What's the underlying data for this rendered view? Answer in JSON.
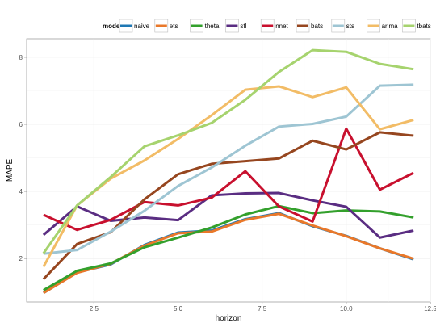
{
  "chart_data": {
    "type": "line",
    "xlabel": "horizon",
    "ylabel": "MAPE",
    "legend_title": "model",
    "legend_position": "top",
    "grid": true,
    "xlim": [
      0.5,
      12.5
    ],
    "ylim": [
      0.7,
      8.55
    ],
    "x_ticks": [
      2.5,
      5.0,
      7.5,
      10.0,
      12.5
    ],
    "x_tick_labels": [
      "2.5",
      "5.0",
      "7.5",
      "10.0",
      "12.5"
    ],
    "y_ticks": [
      2,
      4,
      6,
      8
    ],
    "y_tick_labels": [
      "2",
      "4",
      "6",
      "8"
    ],
    "x": [
      1,
      2,
      3,
      4,
      5,
      6,
      7,
      8,
      9,
      10,
      11,
      12
    ],
    "series": [
      {
        "name": "naive",
        "color": "#1f78b4",
        "values": [
          0.97,
          1.58,
          1.82,
          2.4,
          2.77,
          2.83,
          3.17,
          3.35,
          2.96,
          2.67,
          2.3,
          1.97
        ]
      },
      {
        "name": "ets",
        "color": "#e9782a",
        "values": [
          0.97,
          1.57,
          1.84,
          2.38,
          2.75,
          2.8,
          3.15,
          3.33,
          2.98,
          2.66,
          2.3,
          1.99
        ]
      },
      {
        "name": "theta",
        "color": "#33a02c",
        "values": [
          1.05,
          1.63,
          1.85,
          2.33,
          2.62,
          2.92,
          3.31,
          3.56,
          3.35,
          3.43,
          3.4,
          3.22
        ]
      },
      {
        "name": "stl",
        "color": "#5a2d82",
        "values": [
          2.7,
          3.55,
          3.12,
          3.22,
          3.14,
          3.88,
          3.94,
          3.95,
          3.73,
          3.54,
          2.62,
          2.83
        ]
      },
      {
        "name": "nnet",
        "color": "#c8102e",
        "values": [
          3.3,
          2.85,
          3.15,
          3.68,
          3.58,
          3.81,
          4.6,
          3.55,
          3.1,
          5.87,
          4.05,
          4.55
        ]
      },
      {
        "name": "bats",
        "color": "#96461f",
        "values": [
          1.38,
          2.43,
          2.78,
          3.76,
          4.51,
          4.82,
          4.9,
          4.98,
          5.51,
          5.25,
          5.76,
          5.66
        ]
      },
      {
        "name": "sts",
        "color": "#9ec5d3",
        "values": [
          2.14,
          2.25,
          2.8,
          3.42,
          4.16,
          4.71,
          5.36,
          5.93,
          6.01,
          6.23,
          7.15,
          7.18
        ]
      },
      {
        "name": "arima",
        "color": "#f2bc66",
        "values": [
          1.75,
          3.58,
          4.38,
          4.92,
          5.56,
          6.27,
          7.03,
          7.13,
          6.81,
          7.1,
          5.85,
          6.13
        ]
      },
      {
        "name": "tbats",
        "color": "#a6d36e",
        "values": [
          2.15,
          3.58,
          4.43,
          5.34,
          5.67,
          6.04,
          6.73,
          7.56,
          8.21,
          8.16,
          7.8,
          7.64
        ]
      }
    ]
  }
}
